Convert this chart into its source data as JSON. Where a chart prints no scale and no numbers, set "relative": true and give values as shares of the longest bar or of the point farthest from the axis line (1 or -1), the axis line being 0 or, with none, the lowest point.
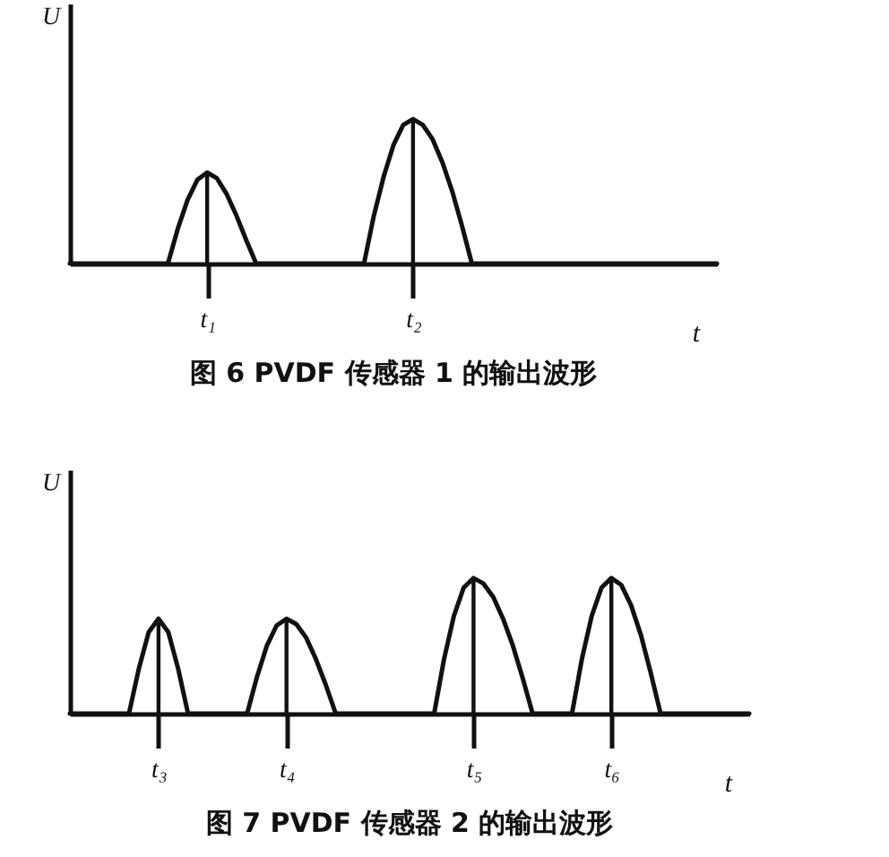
{
  "chart_data": [
    {
      "type": "line",
      "title": "图 6  PVDF 传感器 1 的输出波形",
      "xlabel": "t",
      "ylabel": "U",
      "relative": true,
      "categories": [
        null,
        null,
        null,
        null,
        null,
        null,
        null,
        null,
        null,
        null,
        null,
        null,
        null,
        null,
        "t₁",
        null,
        null,
        null,
        null,
        null,
        null,
        null,
        null,
        null,
        null,
        null,
        null,
        null,
        null,
        null,
        null,
        null,
        null,
        null,
        null,
        "t₂",
        null,
        null,
        null,
        null,
        null,
        null,
        null,
        null,
        null,
        null,
        null,
        null,
        null,
        null,
        null,
        null,
        null,
        null,
        null,
        null,
        null,
        null,
        null,
        null,
        null,
        null,
        null,
        null,
        null,
        null,
        null
      ],
      "series": [
        {
          "color": "#111111",
          "values": [
            0,
            0,
            0,
            0,
            0,
            0,
            0,
            0,
            0,
            0,
            0,
            0.24,
            0.44,
            0.58,
            0.63,
            0.59,
            0.48,
            0.33,
            0.16,
            0,
            0,
            0,
            0,
            0,
            0,
            0,
            0,
            0,
            0,
            0,
            0,
            0.33,
            0.6,
            0.82,
            0.96,
            1,
            0.96,
            0.86,
            0.7,
            0.5,
            0.26,
            0,
            0,
            0,
            0,
            0,
            0,
            0,
            0,
            0,
            0,
            0,
            0,
            0,
            0,
            0,
            0,
            0,
            0,
            0,
            0,
            0,
            0,
            0,
            0,
            0,
            0
          ]
        }
      ]
    },
    {
      "type": "line",
      "title": "图 7  PVDF 传感器 2 的输出波形",
      "xlabel": "t",
      "ylabel": "U",
      "relative": true,
      "categories": [
        null,
        null,
        null,
        null,
        null,
        null,
        null,
        null,
        null,
        "t₃",
        null,
        null,
        null,
        null,
        null,
        null,
        null,
        null,
        null,
        null,
        null,
        null,
        "t₄",
        null,
        null,
        null,
        null,
        null,
        null,
        null,
        null,
        null,
        null,
        null,
        null,
        null,
        null,
        null,
        null,
        null,
        null,
        "t₅",
        null,
        null,
        null,
        null,
        null,
        null,
        null,
        null,
        null,
        null,
        null,
        null,
        null,
        "t₆",
        null,
        null,
        null,
        null,
        null,
        null,
        null,
        null,
        null,
        null,
        null,
        null,
        null,
        null
      ],
      "series": [
        {
          "color": "#111111",
          "values": [
            0,
            0,
            0,
            0,
            0,
            0,
            0,
            0.33,
            0.6,
            0.7,
            0.6,
            0.33,
            0,
            0,
            0,
            0,
            0,
            0,
            0,
            0.27,
            0.5,
            0.65,
            0.7,
            0.66,
            0.56,
            0.4,
            0.21,
            0,
            0,
            0,
            0,
            0,
            0,
            0,
            0,
            0,
            0,
            0,
            0.4,
            0.72,
            0.93,
            1,
            0.96,
            0.86,
            0.7,
            0.5,
            0.26,
            0,
            0,
            0,
            0,
            0,
            0.4,
            0.72,
            0.93,
            1,
            0.95,
            0.8,
            0.58,
            0.3,
            0,
            0,
            0,
            0,
            0,
            0,
            0,
            0,
            0,
            0
          ]
        }
      ]
    }
  ]
}
